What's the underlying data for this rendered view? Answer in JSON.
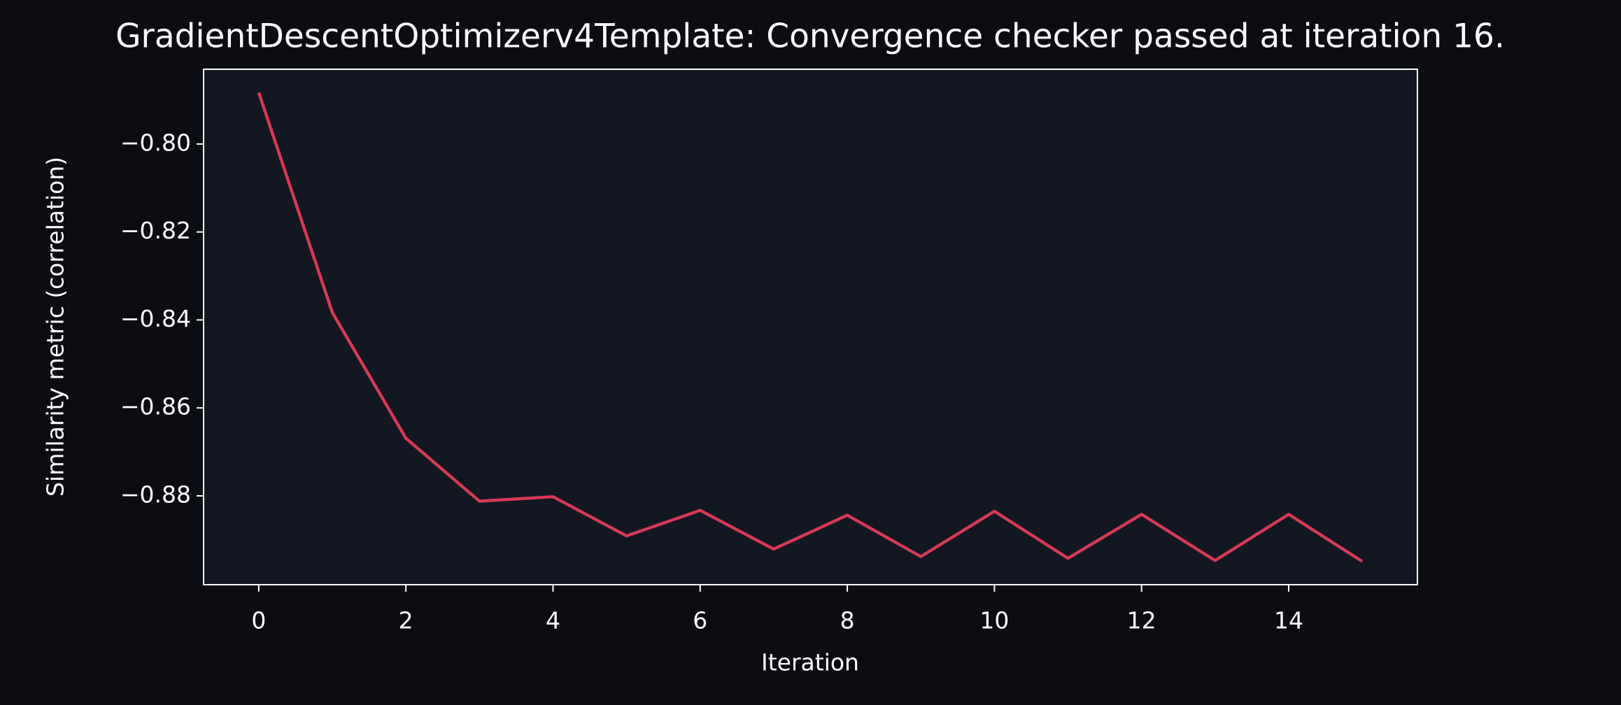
{
  "chart_data": {
    "type": "line",
    "title": "GradientDescentOptimizerv4Template: Convergence checker passed at iteration 16.",
    "x_label": "Iteration",
    "y_label": "Similarity metric (correlation)",
    "x": [
      0,
      1,
      2,
      3,
      4,
      5,
      6,
      7,
      8,
      9,
      10,
      11,
      12,
      13,
      14,
      15
    ],
    "values": [
      -0.7883,
      -0.8383,
      -0.8669,
      -0.8812,
      -0.8802,
      -0.8891,
      -0.8833,
      -0.8921,
      -0.8844,
      -0.8938,
      -0.8835,
      -0.8942,
      -0.8842,
      -0.8947,
      -0.8842,
      -0.8949
    ],
    "color": "#d63a55",
    "xlim": [
      -0.75,
      15.75
    ],
    "xticks": [
      0,
      2,
      4,
      6,
      8,
      10,
      12,
      14
    ],
    "ylim": [
      -0.9002,
      -0.783
    ],
    "yticks": [
      {
        "value": -0.88,
        "label": "−0.88"
      },
      {
        "value": -0.86,
        "label": "−0.86"
      },
      {
        "value": -0.84,
        "label": "−0.84"
      },
      {
        "value": -0.82,
        "label": "−0.82"
      },
      {
        "value": -0.8,
        "label": "−0.80"
      }
    ]
  }
}
